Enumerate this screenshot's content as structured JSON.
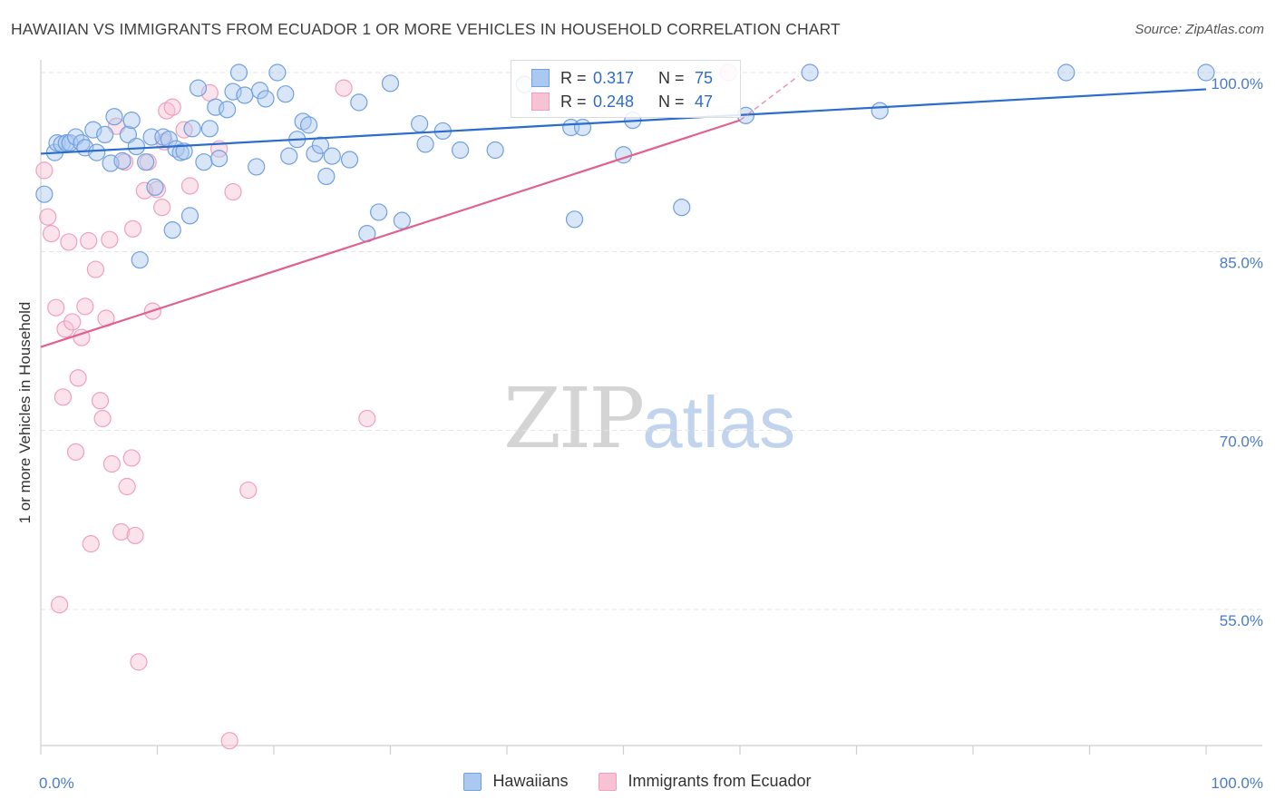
{
  "title": "HAWAIIAN VS IMMIGRANTS FROM ECUADOR 1 OR MORE VEHICLES IN HOUSEHOLD CORRELATION CHART",
  "source": "Source: ZipAtlas.com",
  "watermark": {
    "zip": "ZIP",
    "atlas": "atlas"
  },
  "colors": {
    "blue": "#6fa0e0",
    "blue_fill": "#aac8f0",
    "blue_line": "#2a6dcc",
    "pink": "#f0a0bc",
    "pink_fill": "#f7c2d4",
    "pink_line": "#e06090",
    "tick_text": "#4a7bc8",
    "grid": "#e4e4e4"
  },
  "legend": {
    "rows": [
      {
        "r_label": "R =",
        "r_value": "0.317",
        "n_label": "N =",
        "n_value": "75"
      },
      {
        "r_label": "R =",
        "r_value": "0.248",
        "n_label": "N =",
        "n_value": "47"
      }
    ]
  },
  "chart_data": {
    "type": "scatter",
    "title": "HAWAIIAN VS IMMIGRANTS FROM ECUADOR 1 OR MORE VEHICLES IN HOUSEHOLD CORRELATION CHART",
    "xlabel": "",
    "ylabel": "1 or more Vehicles in Household",
    "xlim": [
      0,
      100
    ],
    "ylim": [
      40.5,
      101
    ],
    "x_tick_labels": [
      "0.0%",
      "100.0%"
    ],
    "y_ticks": [
      100,
      85,
      70,
      55
    ],
    "y_tick_labels": [
      "100.0%",
      "85.0%",
      "70.0%",
      "55.0%"
    ],
    "grid": true,
    "legend_position": "top-center",
    "series": [
      {
        "name": "Hawaiians",
        "color": "#6fa0e0",
        "trend": {
          "x": [
            0,
            100
          ],
          "y": [
            93.2,
            98.6
          ]
        },
        "points": [
          [
            0.3,
            89.8
          ],
          [
            1.2,
            93.3
          ],
          [
            1.4,
            94.1
          ],
          [
            1.8,
            94.0
          ],
          [
            2.2,
            94.1
          ],
          [
            2.5,
            94.1
          ],
          [
            3.0,
            94.6
          ],
          [
            3.5,
            94.1
          ],
          [
            3.8,
            93.7
          ],
          [
            4.5,
            95.2
          ],
          [
            4.8,
            93.3
          ],
          [
            5.5,
            94.8
          ],
          [
            6.0,
            92.4
          ],
          [
            6.3,
            96.3
          ],
          [
            7.0,
            92.6
          ],
          [
            7.5,
            94.8
          ],
          [
            7.8,
            96.0
          ],
          [
            8.2,
            93.8
          ],
          [
            8.5,
            84.3
          ],
          [
            9.0,
            92.5
          ],
          [
            9.5,
            94.6
          ],
          [
            9.8,
            90.4
          ],
          [
            10.5,
            94.6
          ],
          [
            11.0,
            94.4
          ],
          [
            11.3,
            86.8
          ],
          [
            11.6,
            93.6
          ],
          [
            12.0,
            93.3
          ],
          [
            12.3,
            93.4
          ],
          [
            12.8,
            88.0
          ],
          [
            13.0,
            95.3
          ],
          [
            13.5,
            98.7
          ],
          [
            14.0,
            92.5
          ],
          [
            14.5,
            95.3
          ],
          [
            15.0,
            97.1
          ],
          [
            15.3,
            92.8
          ],
          [
            16.0,
            96.9
          ],
          [
            16.5,
            98.4
          ],
          [
            17.0,
            100.0
          ],
          [
            17.5,
            98.1
          ],
          [
            18.5,
            92.1
          ],
          [
            18.8,
            98.5
          ],
          [
            19.3,
            97.8
          ],
          [
            20.3,
            100.0
          ],
          [
            21.0,
            98.2
          ],
          [
            21.3,
            93.0
          ],
          [
            22.0,
            94.4
          ],
          [
            22.5,
            95.9
          ],
          [
            23.0,
            95.6
          ],
          [
            23.5,
            93.2
          ],
          [
            24.0,
            93.9
          ],
          [
            24.5,
            91.3
          ],
          [
            25.0,
            93.0
          ],
          [
            26.5,
            92.7
          ],
          [
            27.3,
            97.5
          ],
          [
            28.0,
            86.5
          ],
          [
            29.0,
            88.3
          ],
          [
            30.0,
            99.1
          ],
          [
            31.0,
            87.6
          ],
          [
            32.5,
            95.7
          ],
          [
            33.0,
            94.0
          ],
          [
            34.5,
            95.1
          ],
          [
            36.0,
            93.5
          ],
          [
            39.0,
            93.5
          ],
          [
            41.5,
            99.0
          ],
          [
            45.5,
            95.4
          ],
          [
            45.8,
            87.7
          ],
          [
            46.5,
            95.4
          ],
          [
            50.0,
            93.1
          ],
          [
            50.8,
            96.0
          ],
          [
            55.0,
            88.7
          ],
          [
            60.5,
            96.4
          ],
          [
            66.0,
            100.0
          ],
          [
            72.0,
            96.8
          ],
          [
            88.0,
            100.0
          ],
          [
            100.0,
            100.0
          ]
        ]
      },
      {
        "name": "Immigrants from Ecuador",
        "color": "#f0a0bc",
        "trend": {
          "x": [
            0,
            60
          ],
          "y": [
            77.0,
            96.0
          ]
        },
        "trend_dashed": {
          "x": [
            60,
            65
          ],
          "y": [
            96.0,
            99.7
          ]
        },
        "points": [
          [
            0.3,
            91.8
          ],
          [
            0.6,
            87.9
          ],
          [
            0.9,
            86.5
          ],
          [
            1.3,
            80.3
          ],
          [
            1.6,
            55.4
          ],
          [
            1.9,
            72.8
          ],
          [
            2.1,
            78.5
          ],
          [
            2.4,
            85.8
          ],
          [
            2.7,
            79.1
          ],
          [
            3.0,
            68.2
          ],
          [
            3.2,
            74.4
          ],
          [
            3.5,
            77.8
          ],
          [
            3.8,
            80.4
          ],
          [
            4.1,
            85.9
          ],
          [
            4.3,
            60.5
          ],
          [
            4.7,
            83.5
          ],
          [
            5.1,
            72.5
          ],
          [
            5.3,
            71.0
          ],
          [
            5.6,
            79.4
          ],
          [
            5.9,
            86.0
          ],
          [
            6.1,
            67.2
          ],
          [
            6.5,
            95.5
          ],
          [
            6.9,
            61.5
          ],
          [
            7.2,
            92.5
          ],
          [
            7.4,
            65.3
          ],
          [
            7.8,
            67.7
          ],
          [
            7.9,
            86.9
          ],
          [
            8.1,
            61.2
          ],
          [
            8.4,
            50.6
          ],
          [
            8.9,
            90.1
          ],
          [
            9.2,
            92.5
          ],
          [
            9.6,
            80.0
          ],
          [
            10.0,
            90.2
          ],
          [
            10.4,
            88.7
          ],
          [
            10.6,
            94.2
          ],
          [
            10.8,
            96.8
          ],
          [
            11.3,
            97.1
          ],
          [
            12.3,
            95.2
          ],
          [
            12.8,
            90.5
          ],
          [
            14.5,
            98.3
          ],
          [
            15.3,
            93.6
          ],
          [
            16.2,
            44.0
          ],
          [
            16.5,
            90.0
          ],
          [
            17.8,
            65.0
          ],
          [
            26.0,
            98.7
          ],
          [
            28.0,
            71.0
          ],
          [
            59.0,
            100.0
          ]
        ]
      }
    ]
  }
}
